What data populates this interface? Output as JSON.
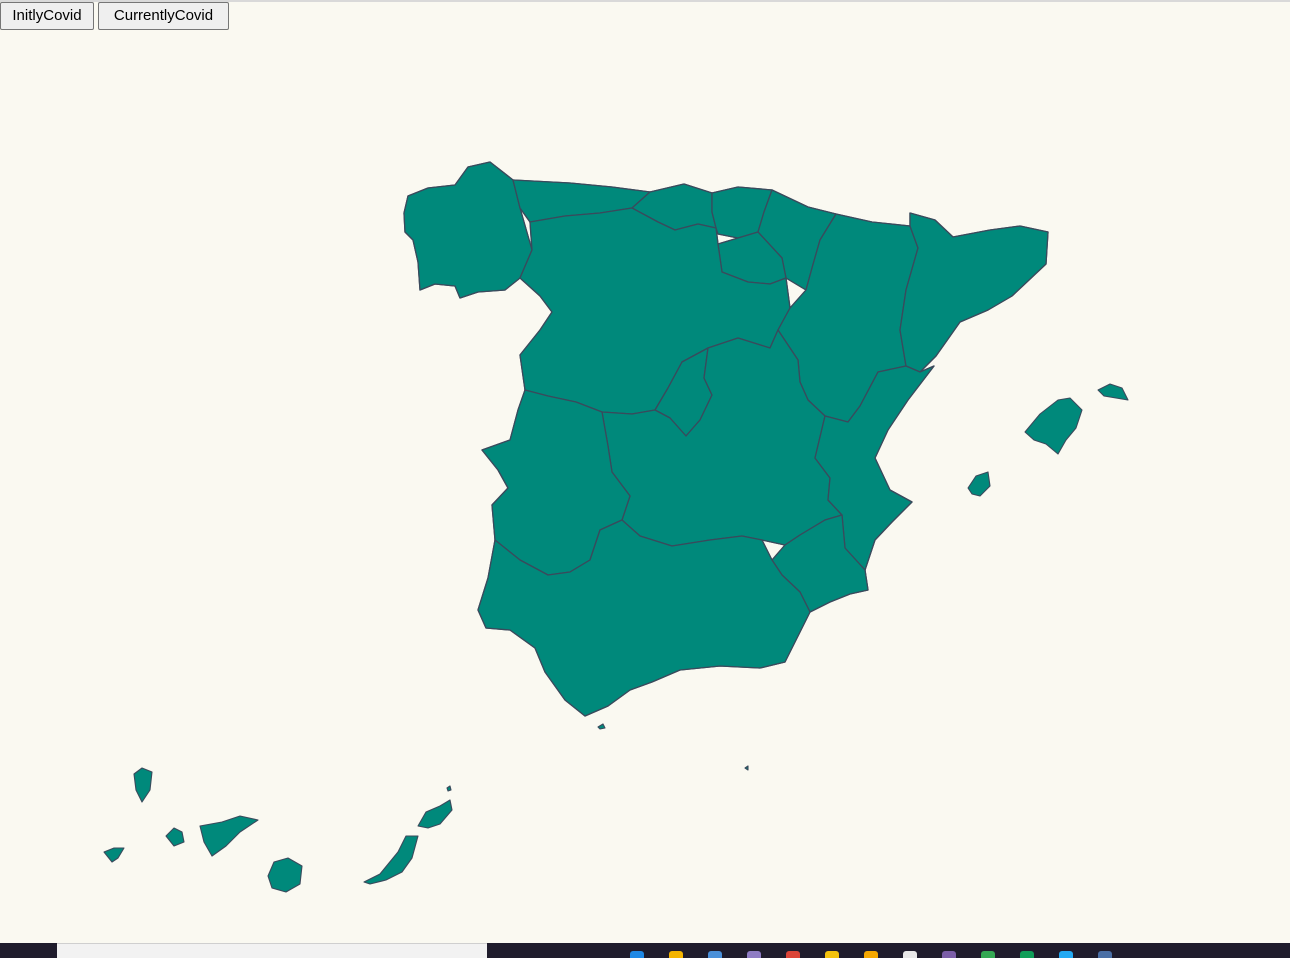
{
  "buttons": {
    "initial": "InitlyCovid",
    "current": "CurrentlyCovid"
  },
  "map": {
    "fill_color": "#00897b",
    "border_color": "#3a4a5c",
    "background_color": "#faf9f1"
  },
  "taskbar": {
    "icons": [
      {
        "name": "edge-icon",
        "color": "#1e88e5"
      },
      {
        "name": "folder-icon",
        "color": "#f4b400"
      },
      {
        "name": "store-icon",
        "color": "#4a90d9"
      },
      {
        "name": "app-icon",
        "color": "#8e7cc3"
      },
      {
        "name": "chrome-icon",
        "color": "#db4437"
      },
      {
        "name": "drive-icon",
        "color": "#f4c20d"
      },
      {
        "name": "notes-icon",
        "color": "#f6a800"
      },
      {
        "name": "app-icon-2",
        "color": "#e8e8e8"
      },
      {
        "name": "teams-icon",
        "color": "#7b5ea7"
      },
      {
        "name": "sheets-icon",
        "color": "#34a853"
      },
      {
        "name": "chrome-icon-2",
        "color": "#0f9d58"
      },
      {
        "name": "vscode-icon",
        "color": "#23a9f2"
      },
      {
        "name": "app-icon-3",
        "color": "#4a6fa5"
      }
    ]
  }
}
